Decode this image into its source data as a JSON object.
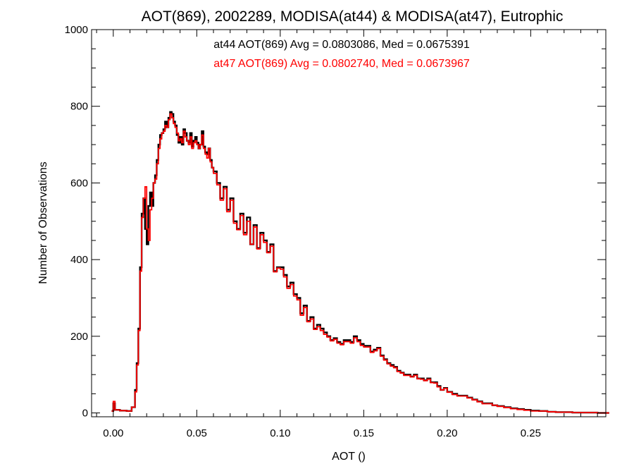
{
  "chart_data": {
    "type": "line",
    "title": "AOT(869), 2002289, MODISA(at44) & MODISA(at47), Eutrophic",
    "xlabel": "AOT ()",
    "ylabel": "Number of Observations",
    "xlim": [
      -0.013,
      0.295
    ],
    "ylim": [
      -10,
      1000
    ],
    "x_ticks": [
      0.0,
      0.05,
      0.1,
      0.15,
      0.2,
      0.25
    ],
    "x_tick_labels": [
      "0.00",
      "0.05",
      "0.10",
      "0.15",
      "0.20",
      "0.25"
    ],
    "y_ticks": [
      0,
      200,
      400,
      600,
      800,
      1000
    ],
    "y_tick_labels": [
      "0",
      "200",
      "400",
      "600",
      "800",
      "1000"
    ],
    "grid": false,
    "step": "histogram",
    "annotations": [
      {
        "text": "at44 AOT(869) Avg = 0.0803086, Med = 0.0675391",
        "color": "#000000"
      },
      {
        "text": "at47 AOT(869) Avg = 0.0802740, Med = 0.0673967",
        "color": "#ff0000"
      }
    ],
    "x": [
      -0.001,
      0.0,
      0.001,
      0.004,
      0.008,
      0.011,
      0.013,
      0.014,
      0.015,
      0.016,
      0.017,
      0.018,
      0.019,
      0.02,
      0.021,
      0.022,
      0.023,
      0.024,
      0.025,
      0.026,
      0.027,
      0.028,
      0.029,
      0.03,
      0.031,
      0.032,
      0.033,
      0.034,
      0.035,
      0.036,
      0.037,
      0.038,
      0.039,
      0.04,
      0.041,
      0.042,
      0.043,
      0.044,
      0.045,
      0.046,
      0.047,
      0.048,
      0.049,
      0.05,
      0.051,
      0.052,
      0.053,
      0.054,
      0.055,
      0.056,
      0.057,
      0.058,
      0.059,
      0.06,
      0.062,
      0.064,
      0.066,
      0.068,
      0.07,
      0.072,
      0.074,
      0.076,
      0.078,
      0.08,
      0.082,
      0.084,
      0.086,
      0.088,
      0.09,
      0.092,
      0.094,
      0.096,
      0.098,
      0.1,
      0.102,
      0.104,
      0.106,
      0.108,
      0.11,
      0.112,
      0.114,
      0.116,
      0.118,
      0.12,
      0.122,
      0.124,
      0.126,
      0.128,
      0.13,
      0.132,
      0.134,
      0.136,
      0.138,
      0.14,
      0.142,
      0.144,
      0.146,
      0.148,
      0.15,
      0.152,
      0.154,
      0.156,
      0.158,
      0.16,
      0.162,
      0.164,
      0.166,
      0.168,
      0.17,
      0.172,
      0.174,
      0.176,
      0.178,
      0.18,
      0.182,
      0.184,
      0.186,
      0.188,
      0.19,
      0.192,
      0.194,
      0.196,
      0.198,
      0.2,
      0.203,
      0.206,
      0.209,
      0.212,
      0.215,
      0.218,
      0.221,
      0.224,
      0.227,
      0.23,
      0.234,
      0.238,
      0.242,
      0.246,
      0.25,
      0.255,
      0.26,
      0.265,
      0.27,
      0.275,
      0.28,
      0.285,
      0.29,
      0.295
    ],
    "series": [
      {
        "name": "at44",
        "color": "#000000",
        "values": [
          5,
          25,
          8,
          6,
          5,
          15,
          60,
          130,
          220,
          380,
          520,
          560,
          480,
          440,
          540,
          575,
          540,
          600,
          620,
          660,
          700,
          725,
          730,
          740,
          760,
          745,
          770,
          785,
          780,
          760,
          750,
          725,
          705,
          720,
          700,
          740,
          730,
          710,
          705,
          730,
          695,
          710,
          720,
          705,
          690,
          700,
          735,
          695,
          680,
          675,
          690,
          660,
          640,
          630,
          600,
          560,
          590,
          530,
          560,
          500,
          480,
          520,
          470,
          510,
          440,
          490,
          430,
          470,
          450,
          420,
          440,
          370,
          380,
          380,
          360,
          330,
          340,
          310,
          300,
          260,
          280,
          240,
          250,
          220,
          230,
          220,
          210,
          200,
          190,
          195,
          185,
          180,
          190,
          190,
          185,
          200,
          190,
          180,
          175,
          175,
          160,
          165,
          170,
          150,
          140,
          130,
          125,
          120,
          110,
          105,
          100,
          100,
          95,
          100,
          90,
          90,
          85,
          90,
          80,
          80,
          70,
          60,
          65,
          55,
          50,
          45,
          45,
          40,
          35,
          30,
          25,
          25,
          20,
          18,
          15,
          12,
          10,
          8,
          6,
          5,
          3,
          2,
          2,
          1,
          1,
          1,
          0,
          0
        ]
      },
      {
        "name": "at47",
        "color": "#ff0000",
        "values": [
          5,
          30,
          8,
          6,
          5,
          15,
          55,
          125,
          215,
          370,
          510,
          560,
          590,
          480,
          450,
          530,
          560,
          600,
          610,
          650,
          690,
          715,
          730,
          735,
          750,
          745,
          765,
          780,
          770,
          755,
          745,
          730,
          710,
          715,
          705,
          735,
          720,
          710,
          700,
          720,
          690,
          705,
          710,
          700,
          690,
          700,
          725,
          690,
          675,
          665,
          690,
          655,
          640,
          625,
          595,
          555,
          585,
          525,
          555,
          495,
          478,
          515,
          465,
          500,
          440,
          485,
          428,
          465,
          445,
          418,
          435,
          368,
          378,
          375,
          355,
          325,
          335,
          305,
          295,
          255,
          275,
          238,
          245,
          218,
          225,
          215,
          205,
          198,
          188,
          192,
          182,
          178,
          186,
          186,
          182,
          196,
          186,
          176,
          172,
          172,
          158,
          162,
          168,
          148,
          138,
          128,
          122,
          118,
          108,
          104,
          98,
          98,
          94,
          98,
          89,
          88,
          84,
          88,
          79,
          78,
          68,
          60,
          64,
          54,
          48,
          44,
          44,
          39,
          34,
          29,
          24,
          24,
          20,
          17,
          14,
          11,
          9,
          7,
          5,
          5,
          3,
          2,
          2,
          1,
          1,
          1,
          0,
          0
        ]
      }
    ]
  }
}
